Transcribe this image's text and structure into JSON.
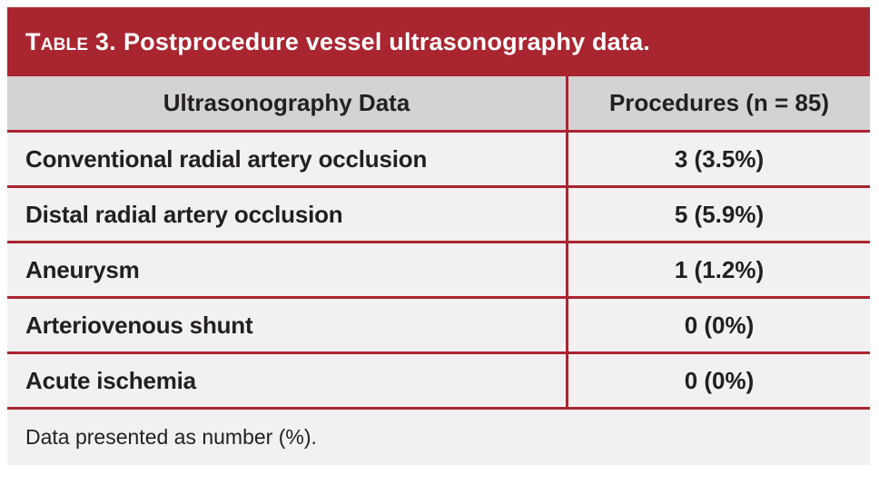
{
  "theme": {
    "banner_red": "#A92530",
    "line_red": "#A92530",
    "header_gray": "#D4D2D2",
    "row_bg": "#F2F0F0",
    "text_dark": "#231F20",
    "banner_text": "#FFFFFF",
    "page_bg": "#FFFFFF"
  },
  "table": {
    "label": "Table 3.",
    "title": "Postprocedure vessel ultrasonography data.",
    "columns": {
      "data": "Ultrasonography Data",
      "procedures": "Procedures (n = 85)"
    },
    "rows": [
      {
        "label": "Conventional radial artery occlusion",
        "value": "3 (3.5%)"
      },
      {
        "label": "Distal radial artery occlusion",
        "value": "5 (5.9%)"
      },
      {
        "label": "Aneurysm",
        "value": "1 (1.2%)"
      },
      {
        "label": "Arteriovenous shunt",
        "value": "0 (0%)"
      },
      {
        "label": "Acute ischemia",
        "value": "0 (0%)"
      }
    ],
    "footnote": "Data presented as number (%)."
  }
}
